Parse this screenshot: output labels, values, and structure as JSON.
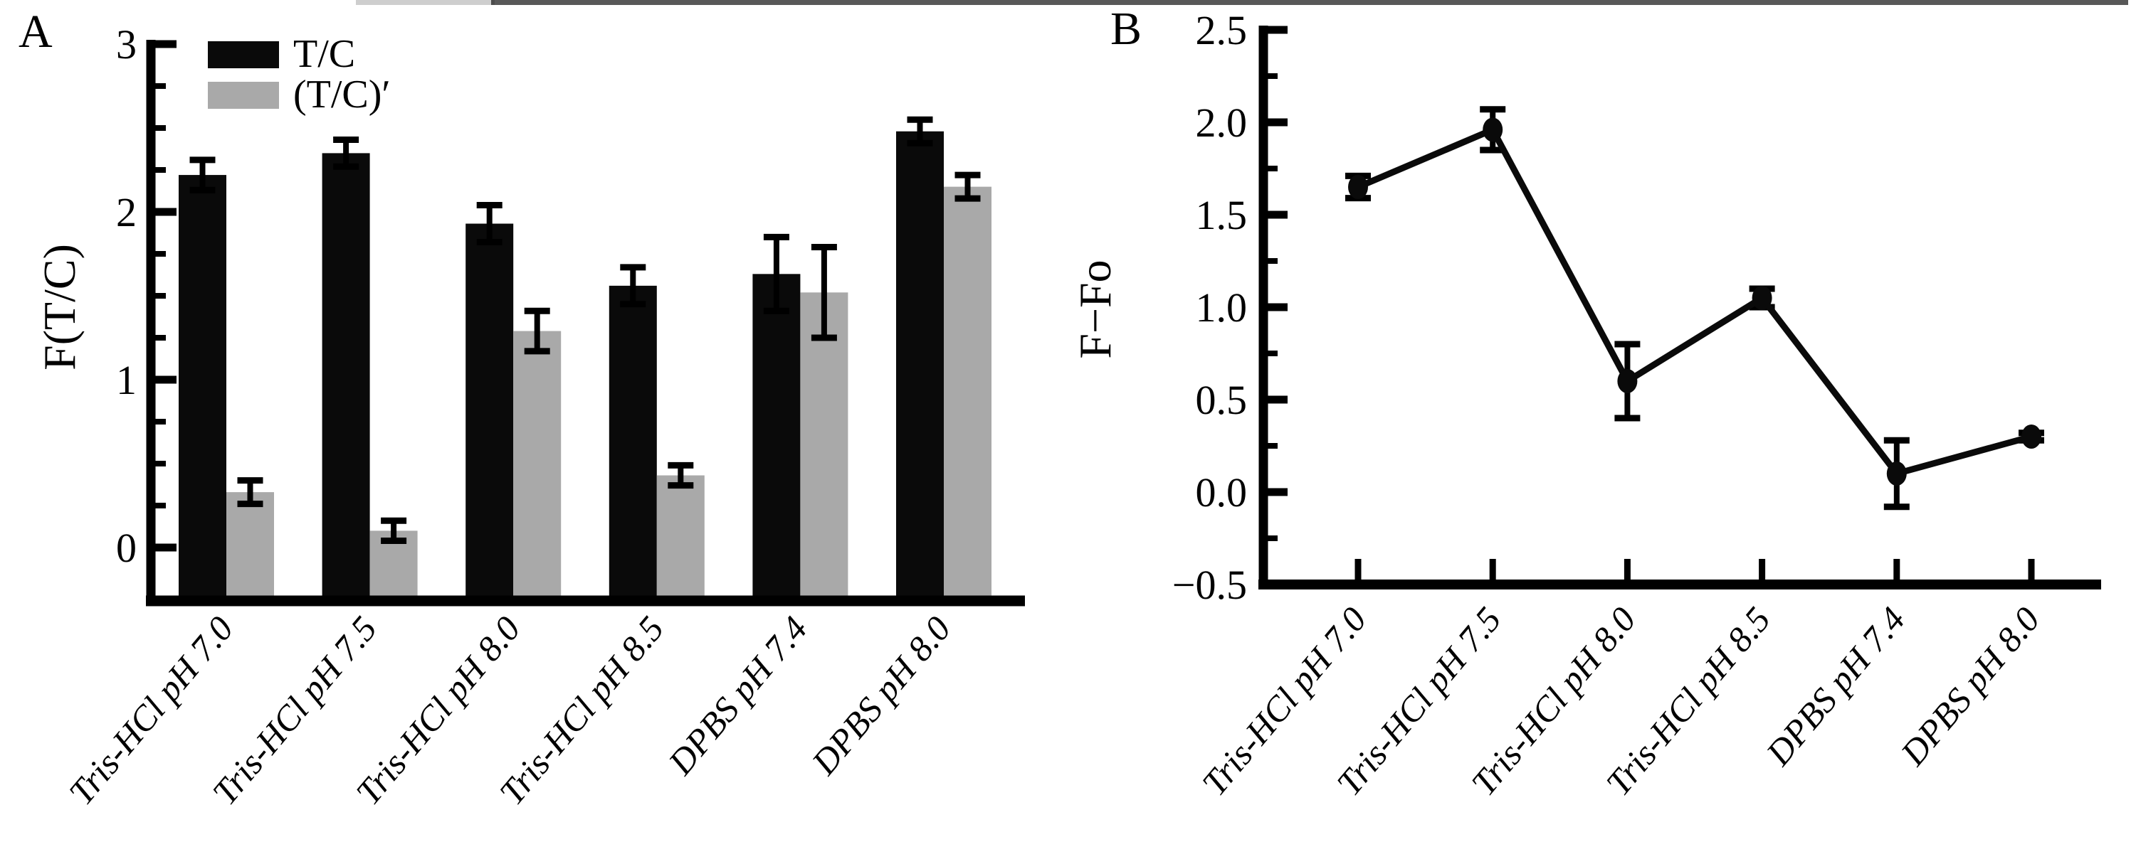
{
  "figure_caption": "",
  "artifact_band": {
    "color": "#202020"
  },
  "chart_data": [
    {
      "type": "bar",
      "panel_label": "A",
      "title": "",
      "xlabel": "",
      "ylabel": "F(T/C)",
      "ylim": [
        0,
        3
      ],
      "ytick_major": 1.0,
      "ytick_minor": 0.25,
      "ytick_labels": [
        "0",
        "1",
        "2",
        "3"
      ],
      "grid": false,
      "legend_position": "top-left",
      "categories": [
        "Tris-HCl pH 7.0",
        "Tris-HCl pH 7.5",
        "Tris-HCl pH 8.0",
        "Tris-HCl pH 8.5",
        "DPBS pH 7.4",
        "DPBS pH 8.0"
      ],
      "series": [
        {
          "name": "T/C",
          "color": "#0a0a0a",
          "values": [
            2.22,
            2.35,
            1.93,
            1.56,
            1.63,
            2.48
          ],
          "errors": [
            0.09,
            0.08,
            0.11,
            0.11,
            0.22,
            0.07
          ]
        },
        {
          "name": "(T/C)′",
          "color": "#a9a9a9",
          "values": [
            0.33,
            0.1,
            1.29,
            0.43,
            1.52,
            2.15
          ],
          "errors": [
            0.07,
            0.06,
            0.12,
            0.06,
            0.27,
            0.07
          ]
        }
      ]
    },
    {
      "type": "line",
      "panel_label": "B",
      "title": "",
      "xlabel": "",
      "ylabel": "F−Fo",
      "ylim": [
        -0.5,
        2.5
      ],
      "ytick_major": 0.5,
      "ytick_minor": 0.25,
      "ytick_labels": [
        "−0.5",
        "0.0",
        "0.5",
        "1.0",
        "1.5",
        "2.0",
        "2.5"
      ],
      "grid": false,
      "legend_position": "none",
      "categories": [
        "Tris-HCl pH 7.0",
        "Tris-HCl pH 7.5",
        "Tris-HCl pH 8.0",
        "Tris-HCl pH 8.5",
        "DPBS pH 7.4",
        "DPBS pH 8.0"
      ],
      "series": [
        {
          "name": "F−Fo",
          "color": "#0a0a0a",
          "values": [
            1.65,
            1.96,
            0.6,
            1.05,
            0.1,
            0.3
          ],
          "errors": [
            0.06,
            0.11,
            0.2,
            0.05,
            0.18,
            0.02
          ]
        }
      ]
    }
  ]
}
